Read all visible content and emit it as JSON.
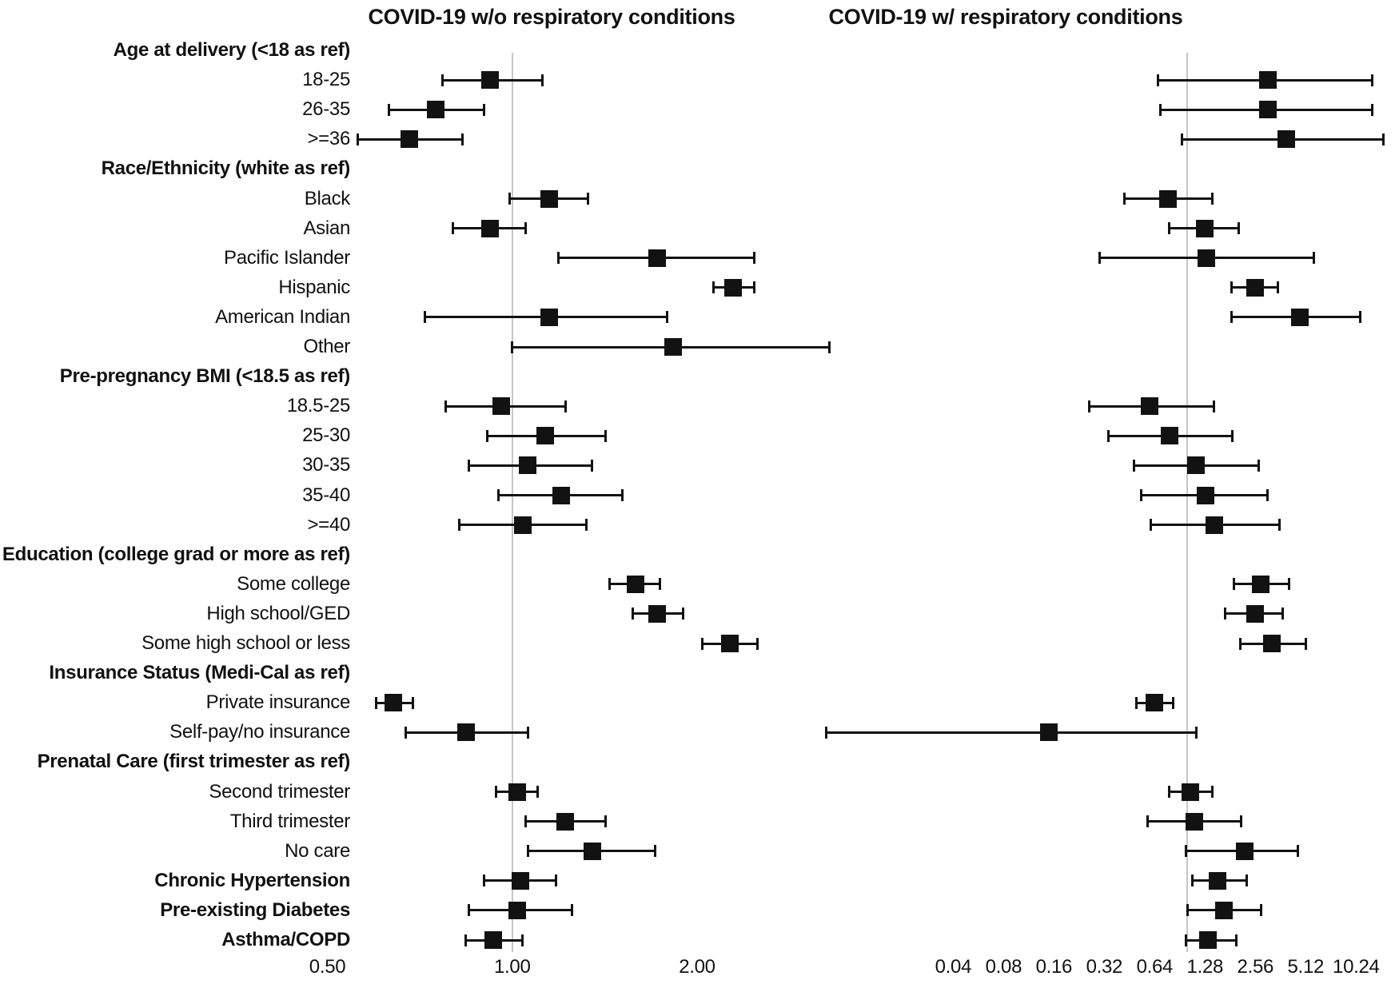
{
  "chart_data": {
    "type": "forest",
    "scale": "log",
    "marker": "black-square",
    "error_bars": "95% CI with end caps",
    "reference_line": 1.0,
    "panels": [
      {
        "id": "wo",
        "title": "COVID-19 w/o respiratory conditions",
        "xlim": [
          0.36,
          3.31
        ],
        "ticks": [
          {
            "label": "0.50",
            "value": 0.5
          },
          {
            "label": "1.00",
            "value": 1.0
          },
          {
            "label": "2.00",
            "value": 2.0
          }
        ]
      },
      {
        "id": "w",
        "title": "COVID-19 w/ respiratory conditions",
        "xlim": [
          0.0067,
          17.5
        ],
        "ticks": [
          {
            "label": "0.04",
            "value": 0.04
          },
          {
            "label": "0.08",
            "value": 0.08
          },
          {
            "label": "0.16",
            "value": 0.16
          },
          {
            "label": "0.32",
            "value": 0.32
          },
          {
            "label": "0.64",
            "value": 0.64
          },
          {
            "label": "1.28",
            "value": 1.28
          },
          {
            "label": "2.56",
            "value": 2.56
          },
          {
            "label": "5.12",
            "value": 5.12
          },
          {
            "label": "10.24",
            "value": 10.24
          }
        ]
      }
    ],
    "rows": [
      {
        "label": "Age at delivery (<18 as ref)",
        "header": true
      },
      {
        "label": "18-25",
        "wo": {
          "or": 0.92,
          "lo": 0.77,
          "hi": 1.12
        },
        "w": {
          "or": 3.03,
          "lo": 0.67,
          "hi": 12.8
        }
      },
      {
        "label": "26-35",
        "wo": {
          "or": 0.75,
          "lo": 0.63,
          "hi": 0.9
        },
        "w": {
          "or": 3.03,
          "lo": 0.69,
          "hi": 12.8
        }
      },
      {
        "label": ">=36",
        "wo": {
          "or": 0.68,
          "lo": 0.56,
          "hi": 0.83
        },
        "w": {
          "or": 3.9,
          "lo": 0.93,
          "hi": 15.0
        }
      },
      {
        "label": "Race/Ethnicity (white as ref)",
        "header": true
      },
      {
        "label": "Black",
        "wo": {
          "or": 1.15,
          "lo": 0.99,
          "hi": 1.33
        },
        "w": {
          "or": 0.77,
          "lo": 0.42,
          "hi": 1.42
        }
      },
      {
        "label": "Asian",
        "wo": {
          "or": 0.92,
          "lo": 0.8,
          "hi": 1.05
        },
        "w": {
          "or": 1.27,
          "lo": 0.78,
          "hi": 2.03
        }
      },
      {
        "label": "Pacific Islander",
        "wo": {
          "or": 1.72,
          "lo": 1.19,
          "hi": 2.48
        },
        "w": {
          "or": 1.3,
          "lo": 0.3,
          "hi": 5.7
        }
      },
      {
        "label": "Hispanic",
        "wo": {
          "or": 2.29,
          "lo": 2.13,
          "hi": 2.48
        },
        "w": {
          "or": 2.56,
          "lo": 1.84,
          "hi": 3.51
        }
      },
      {
        "label": "American Indian",
        "wo": {
          "or": 1.15,
          "lo": 0.72,
          "hi": 1.79
        },
        "w": {
          "or": 4.7,
          "lo": 1.85,
          "hi": 10.9
        }
      },
      {
        "label": "Other",
        "wo": {
          "or": 1.83,
          "lo": 1.0,
          "hi": 3.29
        },
        "w": null
      },
      {
        "label": "Pre-pregnancy BMI (<18.5 as ref)",
        "header": true
      },
      {
        "label": "18.5-25",
        "wo": {
          "or": 0.96,
          "lo": 0.78,
          "hi": 1.22
        },
        "w": {
          "or": 0.6,
          "lo": 0.26,
          "hi": 1.44
        }
      },
      {
        "label": "25-30",
        "wo": {
          "or": 1.13,
          "lo": 0.91,
          "hi": 1.42
        },
        "w": {
          "or": 0.79,
          "lo": 0.34,
          "hi": 1.87
        }
      },
      {
        "label": "30-35",
        "wo": {
          "or": 1.06,
          "lo": 0.85,
          "hi": 1.35
        },
        "w": {
          "or": 1.13,
          "lo": 0.48,
          "hi": 2.67
        }
      },
      {
        "label": "35-40",
        "wo": {
          "or": 1.2,
          "lo": 0.95,
          "hi": 1.51
        },
        "w": {
          "or": 1.29,
          "lo": 0.53,
          "hi": 3.03
        }
      },
      {
        "label": ">=40",
        "wo": {
          "or": 1.04,
          "lo": 0.82,
          "hi": 1.32
        },
        "w": {
          "or": 1.45,
          "lo": 0.61,
          "hi": 3.58
        }
      },
      {
        "label": "Education (college grad or more as ref)",
        "header": true
      },
      {
        "label": "Some college",
        "wo": {
          "or": 1.59,
          "lo": 1.44,
          "hi": 1.74
        },
        "w": {
          "or": 2.76,
          "lo": 1.91,
          "hi": 4.06
        }
      },
      {
        "label": "High school/GED",
        "wo": {
          "or": 1.72,
          "lo": 1.57,
          "hi": 1.9
        },
        "w": {
          "or": 2.54,
          "lo": 1.68,
          "hi": 3.74
        }
      },
      {
        "label": "Some high school or less",
        "wo": {
          "or": 2.26,
          "lo": 2.04,
          "hi": 2.51
        },
        "w": {
          "or": 3.22,
          "lo": 2.09,
          "hi": 5.12
        }
      },
      {
        "label": "Insurance Status (Medi-Cal as ref)",
        "header": true
      },
      {
        "label": "Private insurance",
        "wo": {
          "or": 0.64,
          "lo": 0.6,
          "hi": 0.69
        },
        "w": {
          "or": 0.64,
          "lo": 0.5,
          "hi": 0.83
        }
      },
      {
        "label": "Self-pay/no insurance",
        "wo": {
          "or": 0.84,
          "lo": 0.67,
          "hi": 1.06
        },
        "w": {
          "or": 0.15,
          "lo": 0.007,
          "hi": 1.14
        }
      },
      {
        "label": "Prenatal Care (first trimester as ref)",
        "header": true
      },
      {
        "label": "Second trimester",
        "wo": {
          "or": 1.02,
          "lo": 0.94,
          "hi": 1.1
        },
        "w": {
          "or": 1.05,
          "lo": 0.78,
          "hi": 1.41
        }
      },
      {
        "label": "Third trimester",
        "wo": {
          "or": 1.22,
          "lo": 1.05,
          "hi": 1.42
        },
        "w": {
          "or": 1.1,
          "lo": 0.58,
          "hi": 2.1
        }
      },
      {
        "label": "No care",
        "wo": {
          "or": 1.35,
          "lo": 1.06,
          "hi": 1.71
        },
        "w": {
          "or": 2.2,
          "lo": 0.99,
          "hi": 4.6
        }
      },
      {
        "label": "Chronic Hypertension",
        "bold": true,
        "wo": {
          "or": 1.03,
          "lo": 0.9,
          "hi": 1.18
        },
        "w": {
          "or": 1.52,
          "lo": 1.07,
          "hi": 2.27
        }
      },
      {
        "label": "Pre-existing Diabetes",
        "bold": true,
        "wo": {
          "or": 1.02,
          "lo": 0.85,
          "hi": 1.25
        },
        "w": {
          "or": 1.66,
          "lo": 1.01,
          "hi": 2.78
        }
      },
      {
        "label": "Asthma/COPD",
        "bold": true,
        "wo": {
          "or": 0.93,
          "lo": 0.84,
          "hi": 1.04
        },
        "w": {
          "or": 1.33,
          "lo": 0.98,
          "hi": 1.96
        }
      }
    ]
  }
}
